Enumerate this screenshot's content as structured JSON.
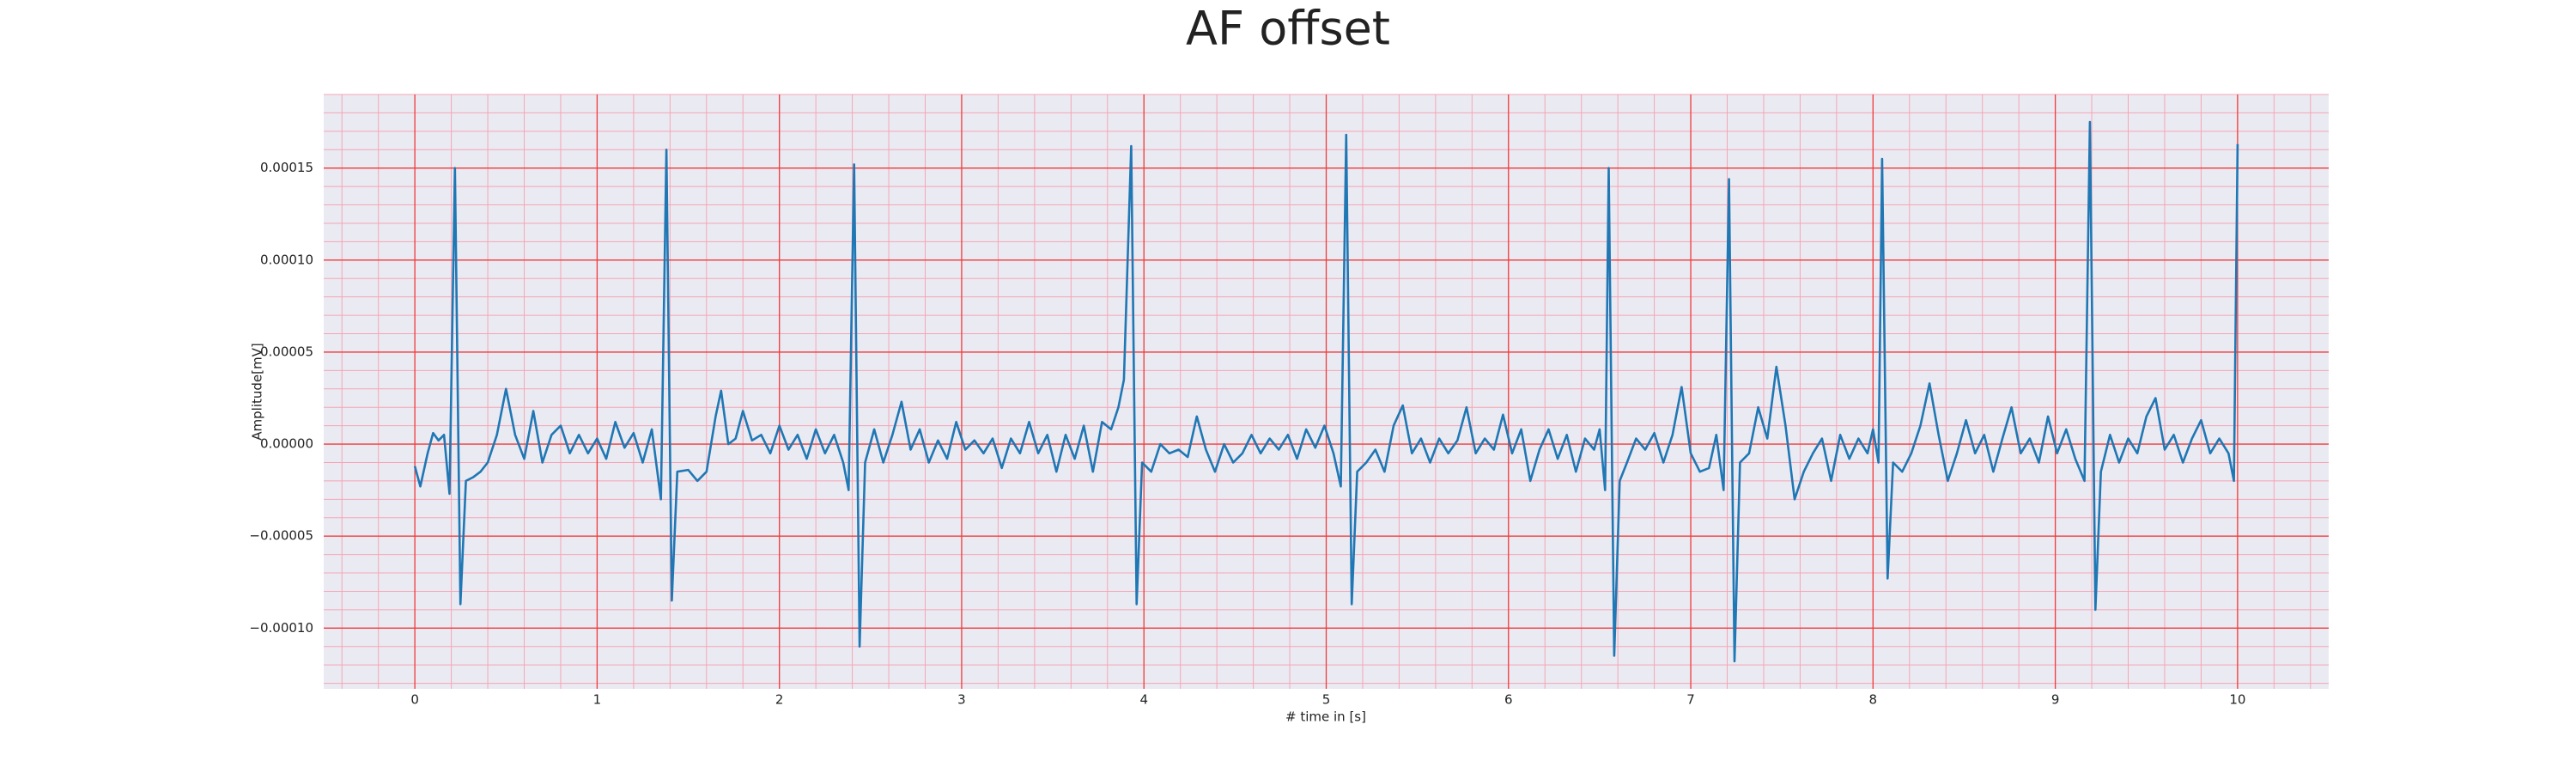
{
  "chart_data": {
    "type": "line",
    "title": "AF offset",
    "xlabel": "# time in [s]",
    "ylabel": "Amplitude[mV]",
    "color": "#1f77b4",
    "grid": true,
    "minor_grid": true,
    "xlim": [
      -0.5,
      10.5
    ],
    "xticks": [
      0,
      1,
      2,
      3,
      4,
      5,
      6,
      7,
      8,
      9,
      10
    ],
    "ylim": [
      -0.000133,
      0.00019
    ],
    "yticks": [
      {
        "value": -0.0001,
        "label": "−0.00010"
      },
      {
        "value": -5e-05,
        "label": "−0.00005"
      },
      {
        "value": 0,
        "label": "0.00000"
      },
      {
        "value": 5e-05,
        "label": "0.00005"
      },
      {
        "value": 0.0001,
        "label": "0.00010"
      },
      {
        "value": 0.00015,
        "label": "0.00015"
      }
    ],
    "x": [
      0.0,
      0.03,
      0.07,
      0.1,
      0.13,
      0.16,
      0.19,
      0.22,
      0.25,
      0.28,
      0.32,
      0.36,
      0.4,
      0.45,
      0.5,
      0.55,
      0.6,
      0.65,
      0.7,
      0.75,
      0.8,
      0.85,
      0.9,
      0.95,
      1.0,
      1.05,
      1.1,
      1.15,
      1.2,
      1.25,
      1.3,
      1.35,
      1.38,
      1.41,
      1.44,
      1.5,
      1.55,
      1.6,
      1.65,
      1.68,
      1.72,
      1.76,
      1.8,
      1.85,
      1.9,
      1.95,
      2.0,
      2.05,
      2.1,
      2.15,
      2.2,
      2.25,
      2.3,
      2.35,
      2.38,
      2.41,
      2.44,
      2.47,
      2.52,
      2.57,
      2.62,
      2.67,
      2.72,
      2.77,
      2.82,
      2.87,
      2.92,
      2.97,
      3.02,
      3.07,
      3.12,
      3.17,
      3.22,
      3.27,
      3.32,
      3.37,
      3.42,
      3.47,
      3.52,
      3.57,
      3.62,
      3.67,
      3.72,
      3.77,
      3.82,
      3.86,
      3.89,
      3.93,
      3.96,
      3.99,
      4.04,
      4.09,
      4.14,
      4.19,
      4.24,
      4.29,
      4.34,
      4.39,
      4.44,
      4.49,
      4.54,
      4.59,
      4.64,
      4.69,
      4.74,
      4.79,
      4.84,
      4.89,
      4.94,
      4.99,
      5.04,
      5.08,
      5.11,
      5.14,
      5.17,
      5.22,
      5.27,
      5.32,
      5.37,
      5.42,
      5.47,
      5.52,
      5.57,
      5.62,
      5.67,
      5.72,
      5.77,
      5.82,
      5.87,
      5.92,
      5.97,
      6.02,
      6.07,
      6.12,
      6.17,
      6.22,
      6.27,
      6.32,
      6.37,
      6.42,
      6.47,
      6.5,
      6.53,
      6.55,
      6.58,
      6.61,
      6.65,
      6.7,
      6.75,
      6.8,
      6.85,
      6.9,
      6.95,
      7.0,
      7.05,
      7.1,
      7.14,
      7.18,
      7.21,
      7.24,
      7.27,
      7.32,
      7.37,
      7.42,
      7.47,
      7.52,
      7.57,
      7.62,
      7.67,
      7.72,
      7.77,
      7.82,
      7.87,
      7.92,
      7.97,
      8.0,
      8.03,
      8.05,
      8.08,
      8.11,
      8.16,
      8.21,
      8.26,
      8.31,
      8.36,
      8.41,
      8.46,
      8.51,
      8.56,
      8.61,
      8.66,
      8.71,
      8.76,
      8.81,
      8.86,
      8.91,
      8.96,
      9.01,
      9.06,
      9.11,
      9.16,
      9.19,
      9.22,
      9.25,
      9.3,
      9.35,
      9.4,
      9.45,
      9.5,
      9.55,
      9.6,
      9.65,
      9.7,
      9.75,
      9.8,
      9.85,
      9.9,
      9.95,
      9.98,
      10.0
    ],
    "values": [
      -1.2e-05,
      -2.3e-05,
      -5e-06,
      6e-06,
      2e-06,
      5e-06,
      -2.7e-05,
      0.00015,
      -8.7e-05,
      -2e-05,
      -1.8e-05,
      -1.5e-05,
      -1e-05,
      5e-06,
      3e-05,
      5e-06,
      -8e-06,
      1.8e-05,
      -1e-05,
      5e-06,
      1e-05,
      -5e-06,
      5e-06,
      -5e-06,
      3e-06,
      -8e-06,
      1.2e-05,
      -2e-06,
      6e-06,
      -1e-05,
      8e-06,
      -3e-05,
      0.00016,
      -8.5e-05,
      -1.5e-05,
      -1.4e-05,
      -2e-05,
      -1.5e-05,
      1.5e-05,
      2.9e-05,
      0,
      3e-06,
      1.8e-05,
      2e-06,
      5e-06,
      -5e-06,
      1e-05,
      -3e-06,
      5e-06,
      -8e-06,
      8e-06,
      -5e-06,
      5e-06,
      -1e-05,
      -2.5e-05,
      0.000152,
      -0.00011,
      -1e-05,
      8e-06,
      -1e-05,
      5e-06,
      2.3e-05,
      -3e-06,
      8e-06,
      -1e-05,
      2e-06,
      -8e-06,
      1.2e-05,
      -3e-06,
      2e-06,
      -5e-06,
      3e-06,
      -1.3e-05,
      3e-06,
      -5e-06,
      1.2e-05,
      -5e-06,
      5e-06,
      -1.5e-05,
      5e-06,
      -8e-06,
      1e-05,
      -1.5e-05,
      1.2e-05,
      8e-06,
      2e-05,
      3.5e-05,
      0.000162,
      -8.7e-05,
      -1e-05,
      -1.5e-05,
      0,
      -5e-06,
      -3e-06,
      -7e-06,
      1.5e-05,
      -3e-06,
      -1.5e-05,
      0,
      -1e-05,
      -5e-06,
      5e-06,
      -5e-06,
      3e-06,
      -3e-06,
      5e-06,
      -8e-06,
      8e-06,
      -2e-06,
      1e-05,
      -5e-06,
      -2.3e-05,
      0.000168,
      -8.7e-05,
      -1.5e-05,
      -1e-05,
      -3e-06,
      -1.5e-05,
      1e-05,
      2.1e-05,
      -5e-06,
      3e-06,
      -1e-05,
      3e-06,
      -5e-06,
      2e-06,
      2e-05,
      -5e-06,
      3e-06,
      -3e-06,
      1.6e-05,
      -5e-06,
      8e-06,
      -2e-05,
      -3e-06,
      8e-06,
      -8e-06,
      5e-06,
      -1.5e-05,
      3e-06,
      -3e-06,
      8e-06,
      -2.5e-05,
      0.00015,
      -0.000115,
      -2e-05,
      -1e-05,
      3e-06,
      -3e-06,
      6e-06,
      -1e-05,
      5e-06,
      3.1e-05,
      -5e-06,
      -1.5e-05,
      -1.3e-05,
      5e-06,
      -2.5e-05,
      0.000144,
      -0.000118,
      -1e-05,
      -5e-06,
      2e-05,
      3e-06,
      4.2e-05,
      1e-05,
      -3e-05,
      -1.5e-05,
      -5e-06,
      3e-06,
      -2e-05,
      5e-06,
      -8e-06,
      3e-06,
      -5e-06,
      8e-06,
      -1e-05,
      0.000155,
      -7.3e-05,
      -1e-05,
      -1.5e-05,
      -5e-06,
      1e-05,
      3.3e-05,
      5e-06,
      -2e-05,
      -5e-06,
      1.3e-05,
      -5e-06,
      5e-06,
      -1.5e-05,
      3e-06,
      2e-05,
      -5e-06,
      3e-06,
      -1e-05,
      1.5e-05,
      -5e-06,
      8e-06,
      -8e-06,
      -2e-05,
      0.000175,
      -9e-05,
      -1.5e-05,
      5e-06,
      -1e-05,
      3e-06,
      -5e-06,
      1.5e-05,
      2.5e-05,
      -3e-06,
      5e-06,
      -1e-05,
      3e-06,
      1.3e-05,
      -5e-06,
      3e-06,
      -5e-06,
      -2e-05,
      0.000163
    ]
  }
}
